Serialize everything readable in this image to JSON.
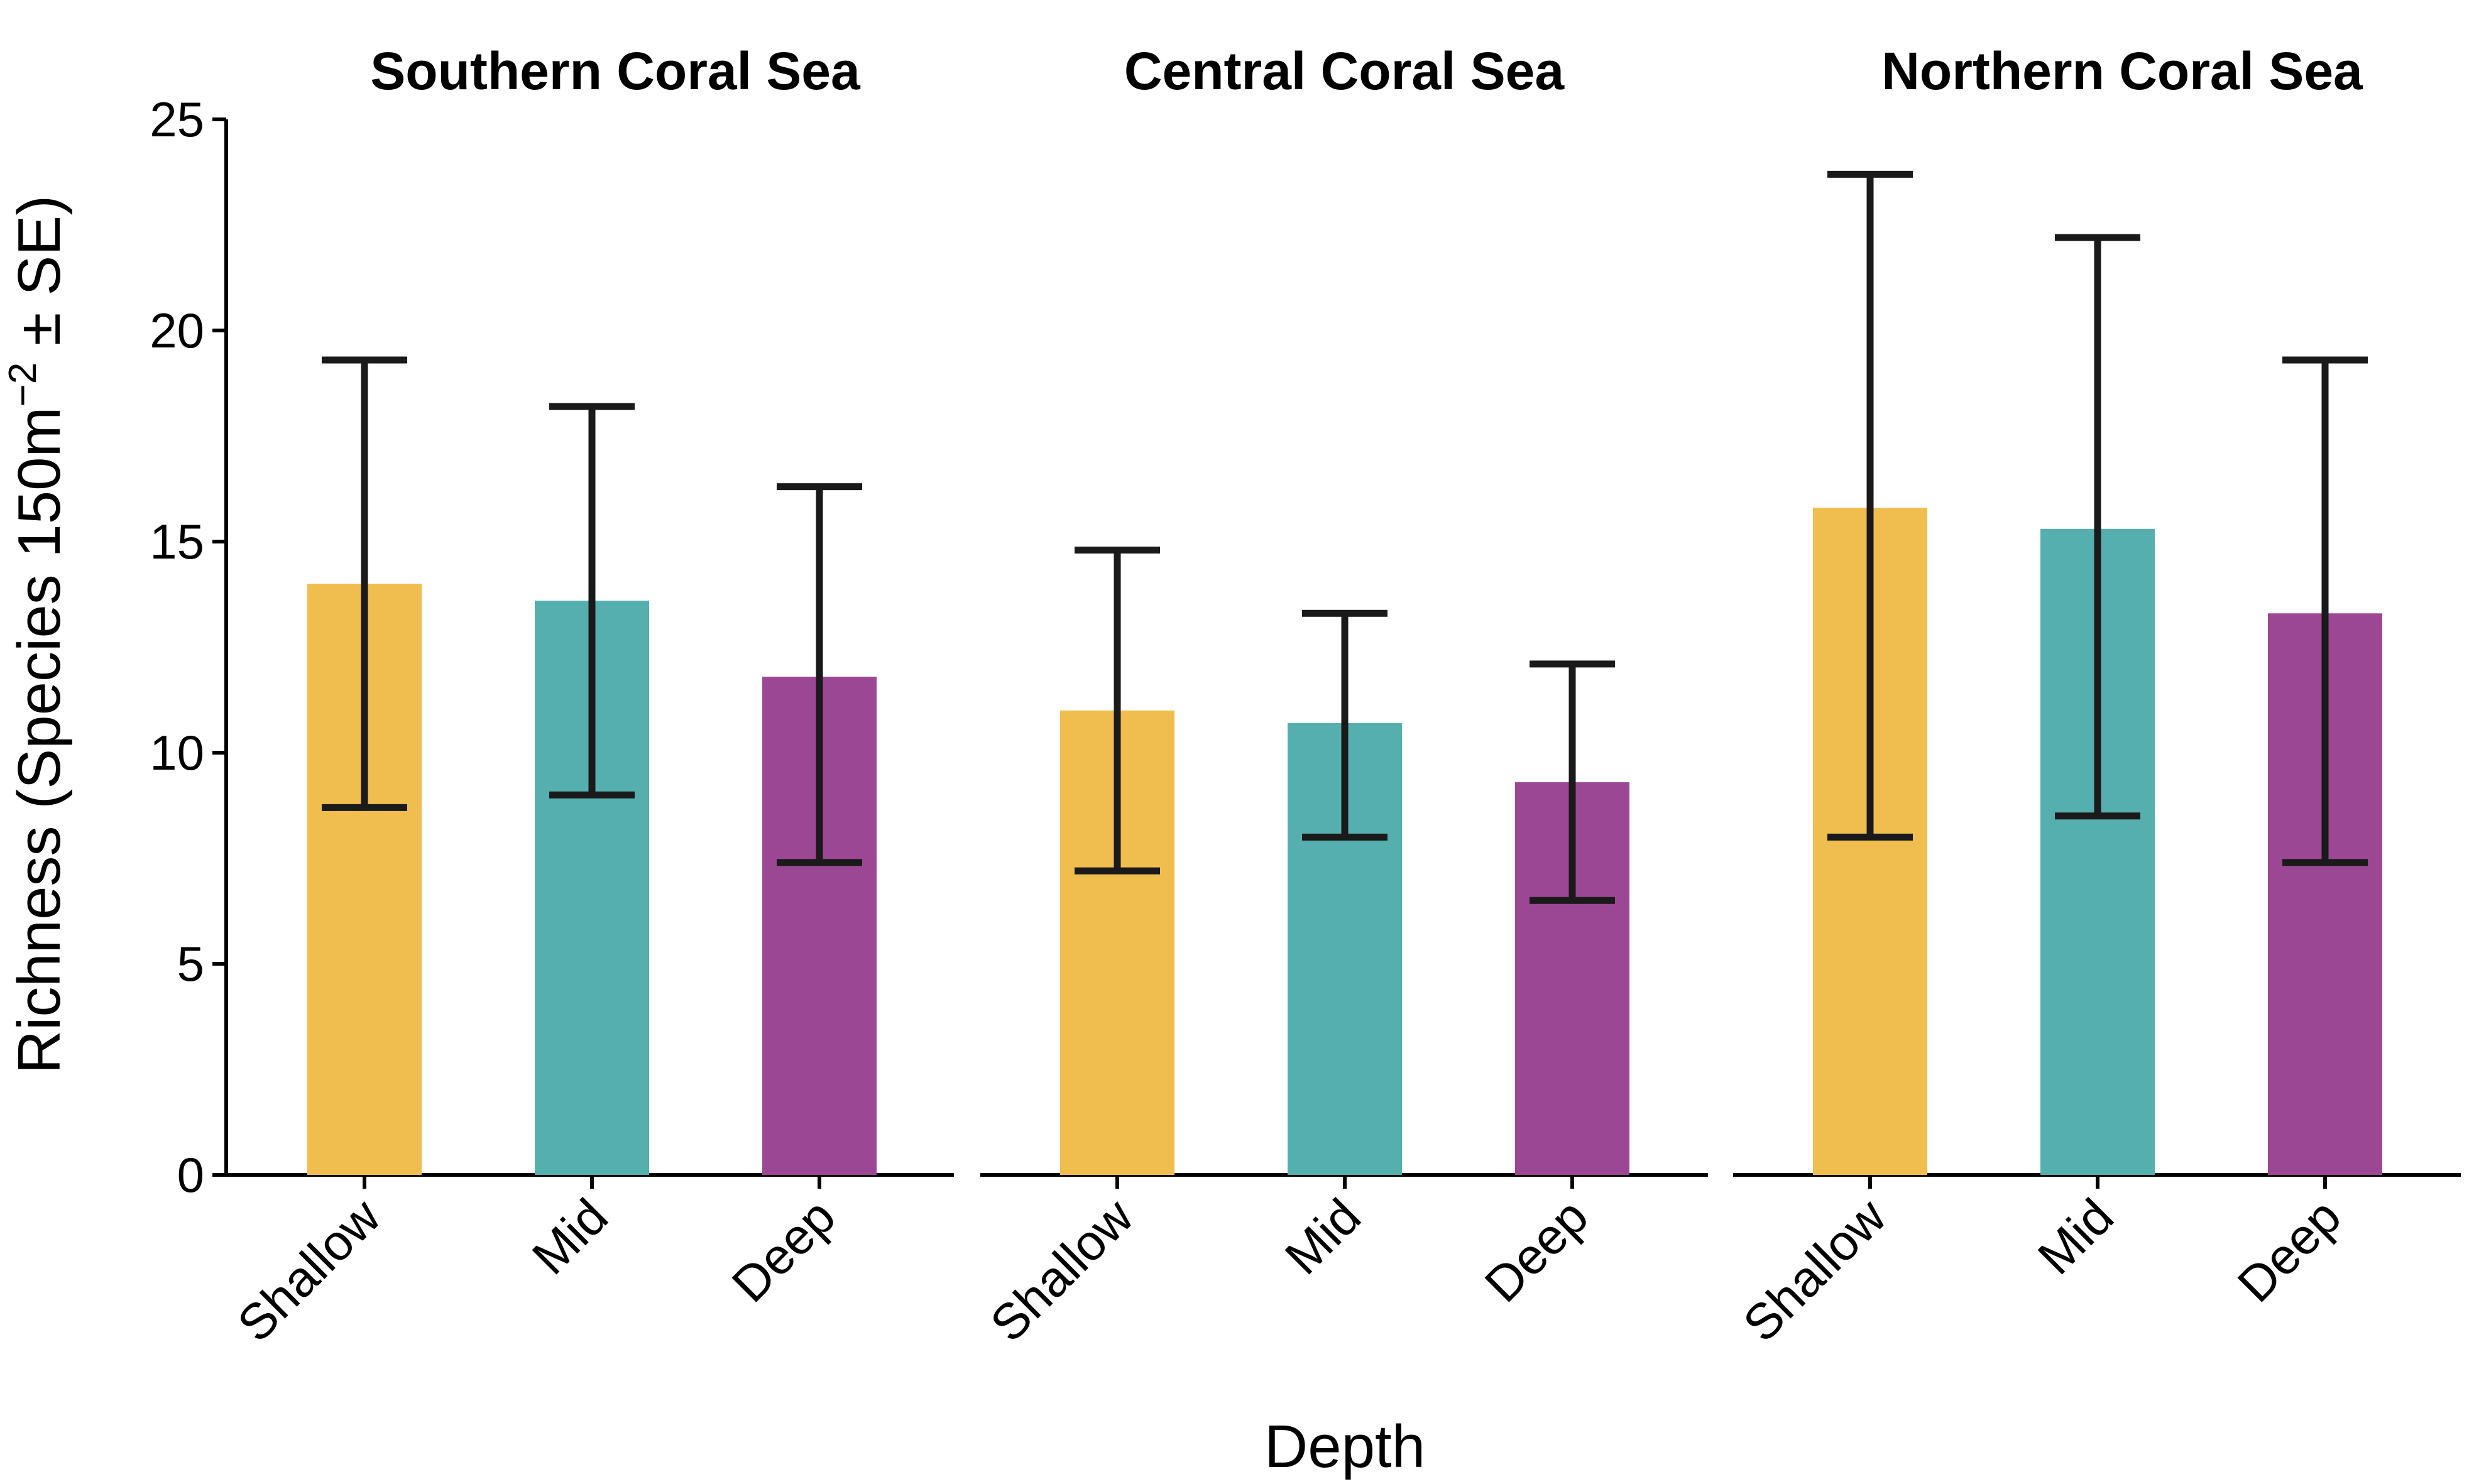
{
  "chart_data": {
    "type": "bar",
    "ylabel_main": "Richness (Species 150m",
    "ylabel_sup": "−2",
    "ylabel_tail": " ± SE)",
    "xlabel": "Depth",
    "ylim": [
      0,
      25
    ],
    "yticks": [
      "0",
      "5",
      "10",
      "15",
      "20",
      "25"
    ],
    "categories": [
      "Shallow",
      "Mid",
      "Deep"
    ],
    "colors": [
      "#EFBE4E",
      "#55AFAE",
      "#9C4794"
    ],
    "panels": [
      {
        "title": "Southern Coral Sea",
        "values": [
          14.0,
          13.6,
          11.8
        ],
        "err_low": [
          8.7,
          9.0,
          7.4
        ],
        "err_high": [
          19.3,
          18.2,
          16.3
        ]
      },
      {
        "title": "Central Coral Sea",
        "values": [
          11.0,
          10.7,
          9.3
        ],
        "err_low": [
          7.2,
          8.0,
          6.5
        ],
        "err_high": [
          14.8,
          13.3,
          12.1
        ]
      },
      {
        "title": "Northern Coral Sea",
        "values": [
          15.8,
          15.3,
          13.3
        ],
        "err_low": [
          8.0,
          8.5,
          7.4
        ],
        "err_high": [
          23.7,
          22.2,
          19.3
        ]
      }
    ]
  }
}
